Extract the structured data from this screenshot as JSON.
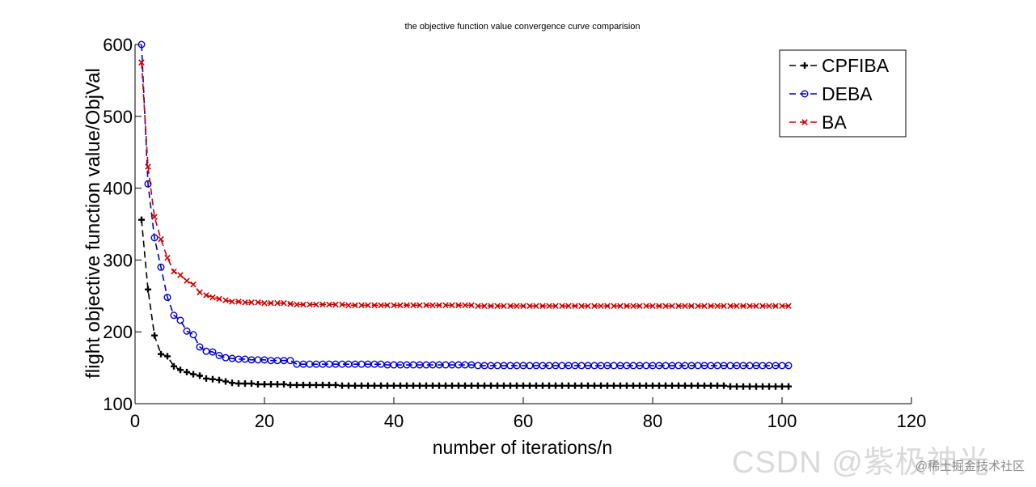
{
  "chart_data": {
    "type": "line",
    "title": "the objective function value convergence curve comparision",
    "xlabel": "number of iterations/n",
    "ylabel": "flight objective function value/ObjVal",
    "xlim": [
      0,
      120
    ],
    "ylim": [
      100,
      600
    ],
    "xticks": [
      0,
      20,
      40,
      60,
      80,
      100,
      120
    ],
    "yticks": [
      100,
      200,
      300,
      400,
      500,
      600
    ],
    "grid": false,
    "legend_position": "top-right",
    "series": [
      {
        "name": "CPFIBA",
        "color": "#000000",
        "marker": "plus",
        "line_style": "dashed",
        "values": [
          [
            1,
            356
          ],
          [
            2,
            259
          ],
          [
            3,
            195
          ],
          [
            4,
            169
          ],
          [
            5,
            166
          ],
          [
            6,
            152
          ],
          [
            7,
            147
          ],
          [
            8,
            144
          ],
          [
            9,
            141
          ],
          [
            10,
            139
          ],
          [
            11,
            135
          ],
          [
            12,
            134
          ],
          [
            13,
            133
          ],
          [
            14,
            131
          ],
          [
            15,
            129
          ],
          [
            16,
            128
          ],
          [
            17,
            128
          ],
          [
            18,
            128
          ],
          [
            19,
            127
          ],
          [
            20,
            127
          ],
          [
            21,
            127
          ],
          [
            22,
            127
          ],
          [
            23,
            127
          ],
          [
            24,
            126
          ],
          [
            25,
            126
          ],
          [
            26,
            126
          ],
          [
            27,
            126
          ],
          [
            28,
            126
          ],
          [
            29,
            126
          ],
          [
            30,
            126
          ],
          [
            31,
            126
          ],
          [
            32,
            125
          ],
          [
            33,
            125
          ],
          [
            34,
            125
          ],
          [
            35,
            125
          ],
          [
            36,
            125
          ],
          [
            37,
            125
          ],
          [
            38,
            125
          ],
          [
            39,
            125
          ],
          [
            40,
            125
          ],
          [
            41,
            125
          ],
          [
            42,
            125
          ],
          [
            43,
            125
          ],
          [
            44,
            125
          ],
          [
            45,
            125
          ],
          [
            46,
            125
          ],
          [
            47,
            125
          ],
          [
            48,
            125
          ],
          [
            49,
            125
          ],
          [
            50,
            125
          ],
          [
            51,
            125
          ],
          [
            52,
            125
          ],
          [
            53,
            125
          ],
          [
            54,
            125
          ],
          [
            55,
            125
          ],
          [
            56,
            125
          ],
          [
            57,
            125
          ],
          [
            58,
            125
          ],
          [
            59,
            125
          ],
          [
            60,
            125
          ],
          [
            61,
            125
          ],
          [
            62,
            125
          ],
          [
            63,
            125
          ],
          [
            64,
            125
          ],
          [
            65,
            125
          ],
          [
            66,
            125
          ],
          [
            67,
            125
          ],
          [
            68,
            125
          ],
          [
            69,
            125
          ],
          [
            70,
            125
          ],
          [
            71,
            125
          ],
          [
            72,
            125
          ],
          [
            73,
            125
          ],
          [
            74,
            125
          ],
          [
            75,
            125
          ],
          [
            76,
            125
          ],
          [
            77,
            125
          ],
          [
            78,
            125
          ],
          [
            79,
            125
          ],
          [
            80,
            125
          ],
          [
            81,
            125
          ],
          [
            82,
            125
          ],
          [
            83,
            125
          ],
          [
            84,
            125
          ],
          [
            85,
            125
          ],
          [
            86,
            125
          ],
          [
            87,
            125
          ],
          [
            88,
            125
          ],
          [
            89,
            125
          ],
          [
            90,
            125
          ],
          [
            91,
            125
          ],
          [
            92,
            124
          ],
          [
            93,
            124
          ],
          [
            94,
            124
          ],
          [
            95,
            124
          ],
          [
            96,
            124
          ],
          [
            97,
            124
          ],
          [
            98,
            124
          ],
          [
            99,
            124
          ],
          [
            100,
            124
          ],
          [
            101,
            124
          ]
        ]
      },
      {
        "name": "DEBA",
        "color": "#0000cc",
        "marker": "circle",
        "line_style": "dashed",
        "values": [
          [
            1,
            600
          ],
          [
            2,
            406
          ],
          [
            3,
            331
          ],
          [
            4,
            290
          ],
          [
            5,
            248
          ],
          [
            6,
            223
          ],
          [
            7,
            216
          ],
          [
            8,
            201
          ],
          [
            9,
            196
          ],
          [
            10,
            179
          ],
          [
            11,
            173
          ],
          [
            12,
            172
          ],
          [
            13,
            167
          ],
          [
            14,
            164
          ],
          [
            15,
            163
          ],
          [
            16,
            162
          ],
          [
            17,
            162
          ],
          [
            18,
            161
          ],
          [
            19,
            161
          ],
          [
            20,
            161
          ],
          [
            21,
            160
          ],
          [
            22,
            160
          ],
          [
            23,
            160
          ],
          [
            24,
            160
          ],
          [
            25,
            155
          ],
          [
            26,
            155
          ],
          [
            27,
            155
          ],
          [
            28,
            155
          ],
          [
            29,
            155
          ],
          [
            30,
            155
          ],
          [
            31,
            155
          ],
          [
            32,
            155
          ],
          [
            33,
            155
          ],
          [
            34,
            155
          ],
          [
            35,
            155
          ],
          [
            36,
            155
          ],
          [
            37,
            155
          ],
          [
            38,
            155
          ],
          [
            39,
            154
          ],
          [
            40,
            154
          ],
          [
            41,
            154
          ],
          [
            42,
            154
          ],
          [
            43,
            154
          ],
          [
            44,
            154
          ],
          [
            45,
            154
          ],
          [
            46,
            154
          ],
          [
            47,
            154
          ],
          [
            48,
            154
          ],
          [
            49,
            154
          ],
          [
            50,
            154
          ],
          [
            51,
            154
          ],
          [
            52,
            154
          ],
          [
            53,
            153
          ],
          [
            54,
            153
          ],
          [
            55,
            153
          ],
          [
            56,
            153
          ],
          [
            57,
            153
          ],
          [
            58,
            153
          ],
          [
            59,
            153
          ],
          [
            60,
            153
          ],
          [
            61,
            153
          ],
          [
            62,
            153
          ],
          [
            63,
            153
          ],
          [
            64,
            153
          ],
          [
            65,
            153
          ],
          [
            66,
            153
          ],
          [
            67,
            153
          ],
          [
            68,
            153
          ],
          [
            69,
            153
          ],
          [
            70,
            153
          ],
          [
            71,
            153
          ],
          [
            72,
            153
          ],
          [
            73,
            153
          ],
          [
            74,
            153
          ],
          [
            75,
            153
          ],
          [
            76,
            153
          ],
          [
            77,
            153
          ],
          [
            78,
            153
          ],
          [
            79,
            153
          ],
          [
            80,
            153
          ],
          [
            81,
            153
          ],
          [
            82,
            153
          ],
          [
            83,
            153
          ],
          [
            84,
            153
          ],
          [
            85,
            153
          ],
          [
            86,
            153
          ],
          [
            87,
            153
          ],
          [
            88,
            153
          ],
          [
            89,
            153
          ],
          [
            90,
            153
          ],
          [
            91,
            153
          ],
          [
            92,
            153
          ],
          [
            93,
            153
          ],
          [
            94,
            153
          ],
          [
            95,
            153
          ],
          [
            96,
            153
          ],
          [
            97,
            153
          ],
          [
            98,
            153
          ],
          [
            99,
            153
          ],
          [
            100,
            153
          ],
          [
            101,
            153
          ]
        ]
      },
      {
        "name": "BA",
        "color": "#cc0000",
        "marker": "x",
        "line_style": "dashed",
        "values": [
          [
            1,
            575
          ],
          [
            2,
            430
          ],
          [
            3,
            360
          ],
          [
            4,
            329
          ],
          [
            5,
            303
          ],
          [
            6,
            284
          ],
          [
            7,
            279
          ],
          [
            8,
            271
          ],
          [
            9,
            266
          ],
          [
            10,
            255
          ],
          [
            11,
            251
          ],
          [
            12,
            248
          ],
          [
            13,
            246
          ],
          [
            14,
            244
          ],
          [
            15,
            242
          ],
          [
            16,
            242
          ],
          [
            17,
            241
          ],
          [
            18,
            241
          ],
          [
            19,
            241
          ],
          [
            20,
            240
          ],
          [
            21,
            240
          ],
          [
            22,
            240
          ],
          [
            23,
            240
          ],
          [
            24,
            239
          ],
          [
            25,
            238
          ],
          [
            26,
            238
          ],
          [
            27,
            238
          ],
          [
            28,
            238
          ],
          [
            29,
            238
          ],
          [
            30,
            238
          ],
          [
            31,
            238
          ],
          [
            32,
            238
          ],
          [
            33,
            237
          ],
          [
            34,
            237
          ],
          [
            35,
            237
          ],
          [
            36,
            237
          ],
          [
            37,
            237
          ],
          [
            38,
            237
          ],
          [
            39,
            237
          ],
          [
            40,
            237
          ],
          [
            41,
            237
          ],
          [
            42,
            237
          ],
          [
            43,
            237
          ],
          [
            44,
            237
          ],
          [
            45,
            237
          ],
          [
            46,
            237
          ],
          [
            47,
            237
          ],
          [
            48,
            237
          ],
          [
            49,
            237
          ],
          [
            50,
            237
          ],
          [
            51,
            237
          ],
          [
            52,
            237
          ],
          [
            53,
            236
          ],
          [
            54,
            236
          ],
          [
            55,
            236
          ],
          [
            56,
            236
          ],
          [
            57,
            236
          ],
          [
            58,
            236
          ],
          [
            59,
            236
          ],
          [
            60,
            236
          ],
          [
            61,
            236
          ],
          [
            62,
            236
          ],
          [
            63,
            236
          ],
          [
            64,
            236
          ],
          [
            65,
            236
          ],
          [
            66,
            236
          ],
          [
            67,
            236
          ],
          [
            68,
            236
          ],
          [
            69,
            236
          ],
          [
            70,
            236
          ],
          [
            71,
            236
          ],
          [
            72,
            236
          ],
          [
            73,
            236
          ],
          [
            74,
            236
          ],
          [
            75,
            236
          ],
          [
            76,
            236
          ],
          [
            77,
            236
          ],
          [
            78,
            236
          ],
          [
            79,
            236
          ],
          [
            80,
            236
          ],
          [
            81,
            236
          ],
          [
            82,
            236
          ],
          [
            83,
            236
          ],
          [
            84,
            236
          ],
          [
            85,
            236
          ],
          [
            86,
            236
          ],
          [
            87,
            236
          ],
          [
            88,
            236
          ],
          [
            89,
            236
          ],
          [
            90,
            236
          ],
          [
            91,
            236
          ],
          [
            92,
            236
          ],
          [
            93,
            236
          ],
          [
            94,
            236
          ],
          [
            95,
            236
          ],
          [
            96,
            236
          ],
          [
            97,
            236
          ],
          [
            98,
            236
          ],
          [
            99,
            236
          ],
          [
            100,
            236
          ],
          [
            101,
            236
          ]
        ]
      }
    ]
  },
  "watermark": {
    "main": "CSDN @紫极神光",
    "site": "@稀土掘金技术社区"
  }
}
